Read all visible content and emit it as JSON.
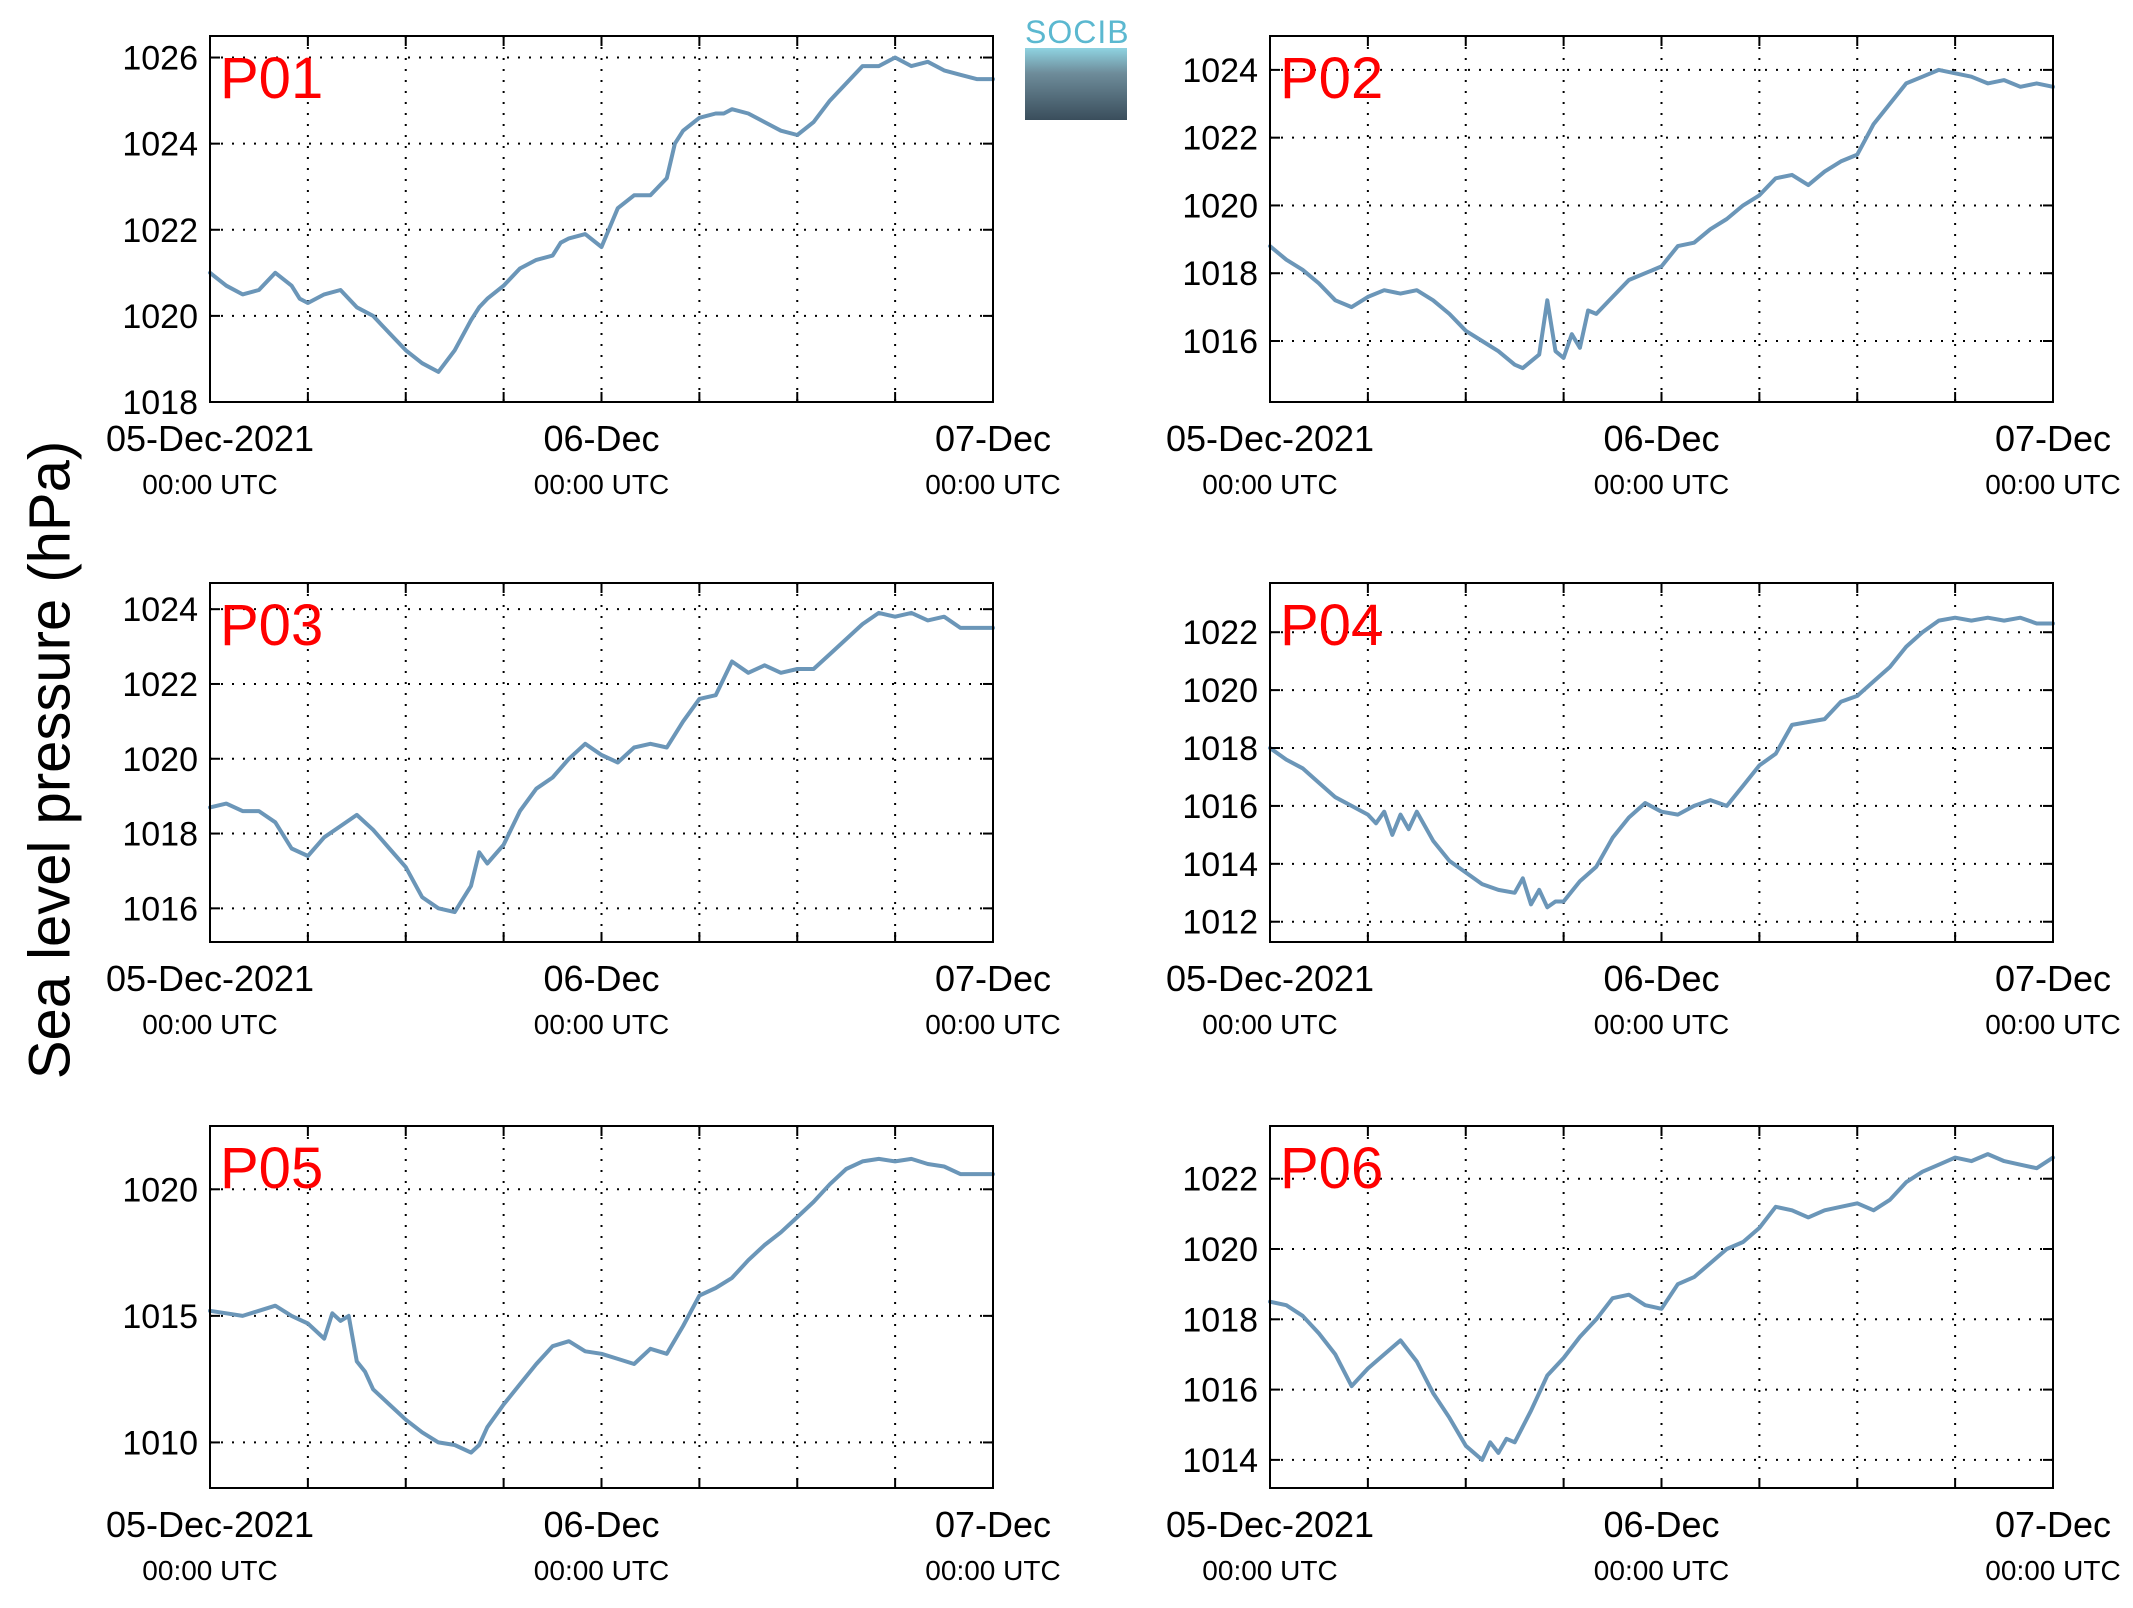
{
  "figure": {
    "ylabel": "Sea level pressure (hPa)",
    "logo_text": "SOCIB",
    "line_color": "#6b96b8",
    "panel_label_color": "#ff0000"
  },
  "chart_data": [
    {
      "type": "line",
      "panel": "P01",
      "x_ticks": [
        {
          "line1": "05-Dec-2021",
          "line2": "00:00 UTC"
        },
        {
          "line1": "06-Dec",
          "line2": "00:00 UTC"
        },
        {
          "line1": "07-Dec",
          "line2": "00:00 UTC"
        }
      ],
      "xlim_hours": [
        0,
        48
      ],
      "ylim": [
        1018,
        1026.5
      ],
      "yticks": [
        1018,
        1020,
        1022,
        1024,
        1026
      ],
      "grid": true,
      "series": [
        {
          "x": [
            0,
            1,
            2,
            3,
            4,
            5,
            5.5,
            6,
            7,
            8,
            9,
            10,
            11,
            12,
            13,
            14,
            15,
            16,
            16.5,
            17,
            18,
            19,
            20,
            21,
            21.5,
            22,
            23,
            24,
            25,
            26,
            27,
            28,
            28.5,
            29,
            30,
            31,
            31.5,
            32,
            33,
            34,
            35,
            36,
            37,
            38,
            39,
            40,
            41,
            42,
            43,
            44,
            45,
            46,
            47,
            48
          ],
          "y": [
            1021.0,
            1020.7,
            1020.5,
            1020.6,
            1021.0,
            1020.7,
            1020.4,
            1020.3,
            1020.5,
            1020.6,
            1020.2,
            1020.0,
            1019.6,
            1019.2,
            1018.9,
            1018.7,
            1019.2,
            1019.9,
            1020.2,
            1020.4,
            1020.7,
            1021.1,
            1021.3,
            1021.4,
            1021.7,
            1021.8,
            1021.9,
            1021.6,
            1022.5,
            1022.8,
            1022.8,
            1023.2,
            1024.0,
            1024.3,
            1024.6,
            1024.7,
            1024.7,
            1024.8,
            1024.7,
            1024.5,
            1024.3,
            1024.2,
            1024.5,
            1025.0,
            1025.4,
            1025.8,
            1025.8,
            1026.0,
            1025.8,
            1025.9,
            1025.7,
            1025.6,
            1025.5,
            1025.5
          ]
        }
      ]
    },
    {
      "type": "line",
      "panel": "P02",
      "x_ticks": [
        {
          "line1": "05-Dec-2021",
          "line2": "00:00 UTC"
        },
        {
          "line1": "06-Dec",
          "line2": "00:00 UTC"
        },
        {
          "line1": "07-Dec",
          "line2": "00:00 UTC"
        }
      ],
      "xlim_hours": [
        0,
        48
      ],
      "ylim": [
        1014.2,
        1025
      ],
      "yticks": [
        1016,
        1018,
        1020,
        1022,
        1024
      ],
      "grid": true,
      "series": [
        {
          "x": [
            0,
            1,
            2,
            3,
            4,
            5,
            6,
            7,
            8,
            9,
            10,
            11,
            12,
            13,
            14,
            15,
            15.5,
            16,
            16.5,
            17,
            17.5,
            18,
            18.5,
            19,
            19.5,
            20,
            21,
            22,
            23,
            24,
            25,
            26,
            27,
            28,
            29,
            30,
            31,
            32,
            33,
            34,
            35,
            36,
            37,
            38,
            39,
            40,
            41,
            42,
            43,
            44,
            45,
            46,
            47,
            48
          ],
          "y": [
            1018.8,
            1018.4,
            1018.1,
            1017.7,
            1017.2,
            1017.0,
            1017.3,
            1017.5,
            1017.4,
            1017.5,
            1017.2,
            1016.8,
            1016.3,
            1016.0,
            1015.7,
            1015.3,
            1015.2,
            1015.4,
            1015.6,
            1017.2,
            1015.7,
            1015.5,
            1016.2,
            1015.8,
            1016.9,
            1016.8,
            1017.3,
            1017.8,
            1018.0,
            1018.2,
            1018.8,
            1018.9,
            1019.3,
            1019.6,
            1020.0,
            1020.3,
            1020.8,
            1020.9,
            1020.6,
            1021.0,
            1021.3,
            1021.5,
            1022.4,
            1023.0,
            1023.6,
            1023.8,
            1024.0,
            1023.9,
            1023.8,
            1023.6,
            1023.7,
            1023.5,
            1023.6,
            1023.5
          ]
        }
      ]
    },
    {
      "type": "line",
      "panel": "P03",
      "x_ticks": [
        {
          "line1": "05-Dec-2021",
          "line2": "00:00 UTC"
        },
        {
          "line1": "06-Dec",
          "line2": "00:00 UTC"
        },
        {
          "line1": "07-Dec",
          "line2": "00:00 UTC"
        }
      ],
      "xlim_hours": [
        0,
        48
      ],
      "ylim": [
        1015.1,
        1024.7
      ],
      "yticks": [
        1016,
        1018,
        1020,
        1022,
        1024
      ],
      "grid": true,
      "series": [
        {
          "x": [
            0,
            1,
            2,
            3,
            4,
            5,
            6,
            7,
            8,
            9,
            10,
            11,
            12,
            13,
            14,
            15,
            16,
            16.5,
            17,
            18,
            19,
            20,
            21,
            22,
            23,
            24,
            25,
            26,
            27,
            28,
            29,
            30,
            31,
            32,
            33,
            34,
            35,
            36,
            37,
            38,
            39,
            40,
            41,
            42,
            43,
            44,
            45,
            46,
            47,
            48
          ],
          "y": [
            1018.7,
            1018.8,
            1018.6,
            1018.6,
            1018.3,
            1017.6,
            1017.4,
            1017.9,
            1018.2,
            1018.5,
            1018.1,
            1017.6,
            1017.1,
            1016.3,
            1016.0,
            1015.9,
            1016.6,
            1017.5,
            1017.2,
            1017.7,
            1018.6,
            1019.2,
            1019.5,
            1020.0,
            1020.4,
            1020.1,
            1019.9,
            1020.3,
            1020.4,
            1020.3,
            1021.0,
            1021.6,
            1021.7,
            1022.6,
            1022.3,
            1022.5,
            1022.3,
            1022.4,
            1022.4,
            1022.8,
            1023.2,
            1023.6,
            1023.9,
            1023.8,
            1023.9,
            1023.7,
            1023.8,
            1023.5,
            1023.5,
            1023.5
          ]
        }
      ]
    },
    {
      "type": "line",
      "panel": "P04",
      "x_ticks": [
        {
          "line1": "05-Dec-2021",
          "line2": "00:00 UTC"
        },
        {
          "line1": "06-Dec",
          "line2": "00:00 UTC"
        },
        {
          "line1": "07-Dec",
          "line2": "00:00 UTC"
        }
      ],
      "xlim_hours": [
        0,
        48
      ],
      "ylim": [
        1011.3,
        1023.7
      ],
      "yticks": [
        1012,
        1014,
        1016,
        1018,
        1020,
        1022
      ],
      "grid": true,
      "series": [
        {
          "x": [
            0,
            1,
            2,
            3,
            4,
            5,
            6,
            6.5,
            7,
            7.5,
            8,
            8.5,
            9,
            10,
            11,
            12,
            13,
            14,
            15,
            15.5,
            16,
            16.5,
            17,
            17.5,
            18,
            19,
            20,
            21,
            22,
            23,
            24,
            25,
            26,
            27,
            28,
            29,
            30,
            31,
            32,
            33,
            34,
            35,
            36,
            37,
            38,
            39,
            40,
            41,
            42,
            43,
            44,
            45,
            46,
            47,
            48
          ],
          "y": [
            1018.0,
            1017.6,
            1017.3,
            1016.8,
            1016.3,
            1016.0,
            1015.7,
            1015.4,
            1015.8,
            1015.0,
            1015.7,
            1015.2,
            1015.8,
            1014.8,
            1014.1,
            1013.7,
            1013.3,
            1013.1,
            1013.0,
            1013.5,
            1012.6,
            1013.1,
            1012.5,
            1012.7,
            1012.7,
            1013.4,
            1013.9,
            1014.9,
            1015.6,
            1016.1,
            1015.8,
            1015.7,
            1016.0,
            1016.2,
            1016.0,
            1016.7,
            1017.4,
            1017.8,
            1018.8,
            1018.9,
            1019.0,
            1019.6,
            1019.8,
            1020.3,
            1020.8,
            1021.5,
            1022.0,
            1022.4,
            1022.5,
            1022.4,
            1022.5,
            1022.4,
            1022.5,
            1022.3,
            1022.3
          ]
        }
      ]
    },
    {
      "type": "line",
      "panel": "P05",
      "x_ticks": [
        {
          "line1": "05-Dec-2021",
          "line2": "00:00 UTC"
        },
        {
          "line1": "06-Dec",
          "line2": "00:00 UTC"
        },
        {
          "line1": "07-Dec",
          "line2": "00:00 UTC"
        }
      ],
      "xlim_hours": [
        0,
        48
      ],
      "ylim": [
        1008.2,
        1022.5
      ],
      "yticks": [
        1010,
        1015,
        1020
      ],
      "grid": true,
      "series": [
        {
          "x": [
            0,
            1,
            2,
            3,
            4,
            5,
            6,
            7,
            7.5,
            8,
            8.5,
            9,
            9.5,
            10,
            11,
            12,
            13,
            14,
            15,
            16,
            16.5,
            17,
            18,
            19,
            20,
            21,
            22,
            23,
            24,
            25,
            26,
            27,
            28,
            29,
            30,
            31,
            32,
            33,
            34,
            35,
            36,
            37,
            38,
            39,
            40,
            41,
            42,
            43,
            44,
            45,
            46,
            47,
            48
          ],
          "y": [
            1015.2,
            1015.1,
            1015.0,
            1015.2,
            1015.4,
            1015.0,
            1014.7,
            1014.1,
            1015.1,
            1014.8,
            1015.0,
            1013.2,
            1012.8,
            1012.1,
            1011.5,
            1010.9,
            1010.4,
            1010.0,
            1009.9,
            1009.6,
            1009.9,
            1010.6,
            1011.5,
            1012.3,
            1013.1,
            1013.8,
            1014.0,
            1013.6,
            1013.5,
            1013.3,
            1013.1,
            1013.7,
            1013.5,
            1014.6,
            1015.8,
            1016.1,
            1016.5,
            1017.2,
            1017.8,
            1018.3,
            1018.9,
            1019.5,
            1020.2,
            1020.8,
            1021.1,
            1021.2,
            1021.1,
            1021.2,
            1021.0,
            1020.9,
            1020.6,
            1020.6,
            1020.6
          ]
        }
      ]
    },
    {
      "type": "line",
      "panel": "P06",
      "x_ticks": [
        {
          "line1": "05-Dec-2021",
          "line2": "00:00 UTC"
        },
        {
          "line1": "06-Dec",
          "line2": "00:00 UTC"
        },
        {
          "line1": "07-Dec",
          "line2": "00:00 UTC"
        }
      ],
      "xlim_hours": [
        0,
        48
      ],
      "ylim": [
        1013.2,
        1023.5
      ],
      "yticks": [
        1014,
        1016,
        1018,
        1020,
        1022
      ],
      "grid": true,
      "series": [
        {
          "x": [
            0,
            1,
            2,
            3,
            4,
            5,
            6,
            7,
            8,
            9,
            10,
            11,
            12,
            13,
            13.5,
            14,
            14.5,
            15,
            16,
            17,
            18,
            19,
            20,
            21,
            22,
            23,
            24,
            25,
            26,
            27,
            28,
            29,
            30,
            31,
            32,
            33,
            34,
            35,
            36,
            37,
            38,
            39,
            40,
            41,
            42,
            43,
            44,
            45,
            46,
            47,
            48
          ],
          "y": [
            1018.5,
            1018.4,
            1018.1,
            1017.6,
            1017.0,
            1016.1,
            1016.6,
            1017.0,
            1017.4,
            1016.8,
            1015.9,
            1015.2,
            1014.4,
            1014.0,
            1014.5,
            1014.2,
            1014.6,
            1014.5,
            1015.4,
            1016.4,
            1016.9,
            1017.5,
            1018.0,
            1018.6,
            1018.7,
            1018.4,
            1018.3,
            1019.0,
            1019.2,
            1019.6,
            1020.0,
            1020.2,
            1020.6,
            1021.2,
            1021.1,
            1020.9,
            1021.1,
            1021.2,
            1021.3,
            1021.1,
            1021.4,
            1021.9,
            1022.2,
            1022.4,
            1022.6,
            1022.5,
            1022.7,
            1022.5,
            1022.4,
            1022.3,
            1022.6
          ]
        }
      ]
    }
  ]
}
